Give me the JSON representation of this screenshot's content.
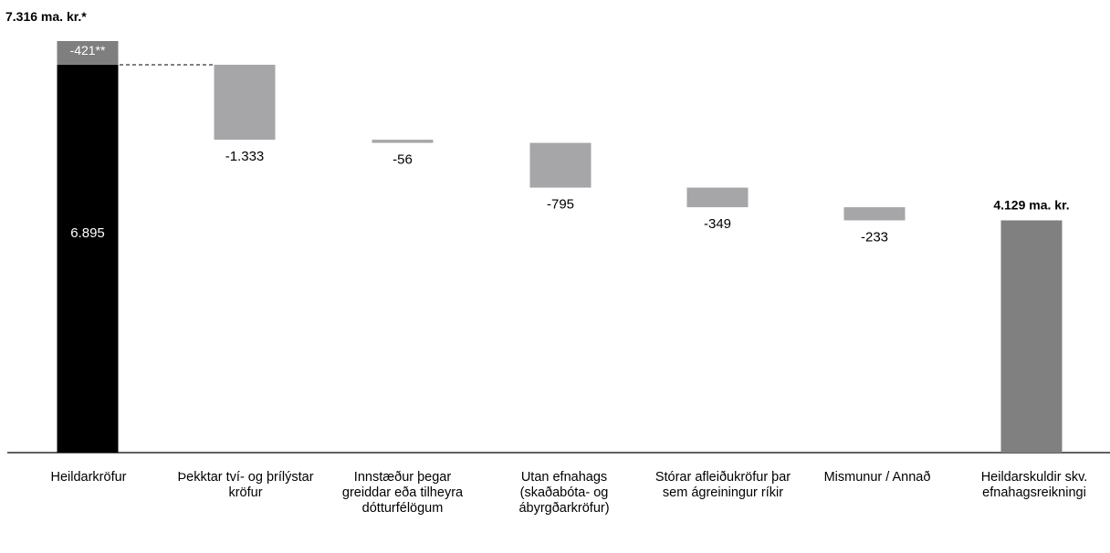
{
  "chart_data": {
    "type": "waterfall",
    "title": "",
    "xlabel": "",
    "ylabel": "",
    "ylim": [
      0,
      7316
    ],
    "grid": false,
    "legend": "none",
    "categories": [
      "Heildarkröfur",
      "Þekktar tví- og þrílýstar kröfur",
      "Innstæður þegar greiddar eða tilheyra dótturfélögum",
      "Utan efnahags (skaðabóta- og ábyrgðarkröfur)",
      "Stórar afleiðukröfur þar sem ágreiningur ríkir",
      "Mismunur / Annað",
      "Heildarskuldir skv. efnahagsreikningi"
    ],
    "start_bar": {
      "value": 6895,
      "label": "6.895",
      "adjustment": {
        "value": -421,
        "label": "-421**"
      },
      "total_label": "7.316 ma. kr.*"
    },
    "changes": [
      {
        "value": -1333,
        "label": "-1.333"
      },
      {
        "value": -56,
        "label": "-56"
      },
      {
        "value": -795,
        "label": "-795"
      },
      {
        "value": -349,
        "label": "-349"
      },
      {
        "value": -233,
        "label": "-233"
      }
    ],
    "end_bar": {
      "value": 4129,
      "total_label": "4.129 ma. kr."
    },
    "colors": {
      "start": "#000000",
      "adjustment": "#7f7f7f",
      "change": "#a6a6a8",
      "end": "#808080",
      "axis": "#000000"
    }
  }
}
